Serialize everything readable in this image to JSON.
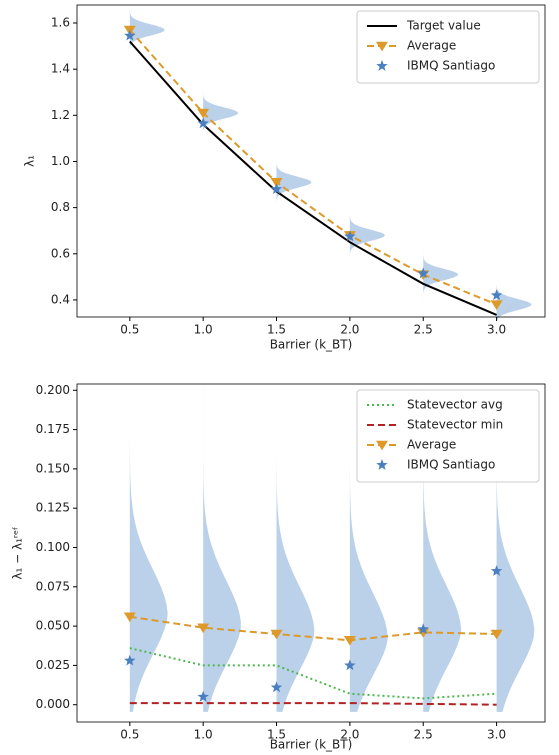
{
  "chart_data": [
    {
      "type": "line",
      "ylabel": "λ₁",
      "xlabel": "Barrier (k_BT)",
      "x": [
        0.5,
        1.0,
        1.5,
        2.0,
        2.5,
        3.0
      ],
      "xlim": [
        0.14,
        3.33
      ],
      "xticks": [
        0.5,
        {
          "value": 1.0,
          "label": "1.0"
        },
        1.5,
        {
          "value": 2.0,
          "label": "2.0"
        },
        2.5,
        {
          "value": 3.0,
          "label": "3.0"
        }
      ],
      "ylim": [
        0.326,
        1.678
      ],
      "yticks": [
        0.4,
        0.6,
        0.8,
        {
          "value": 1.0,
          "label": "1.0"
        },
        1.2,
        1.4,
        1.6
      ],
      "legend": "upper right",
      "series": [
        {
          "name": "Target value",
          "color": "#000000",
          "style": "solid",
          "marker": null,
          "values": [
            1.52,
            1.16,
            0.87,
            0.65,
            0.47,
            0.335
          ]
        },
        {
          "name": "Average",
          "color": "#dd9a2a",
          "style": "dashed",
          "marker": "triangle-down",
          "values": [
            1.57,
            1.21,
            0.91,
            0.68,
            0.51,
            0.38
          ]
        },
        {
          "name": "IBMQ Santiago",
          "color": "#4a7fc1",
          "style": "none",
          "marker": "star",
          "values": [
            1.545,
            1.165,
            0.88,
            0.675,
            0.515,
            0.42
          ]
        }
      ]
    },
    {
      "type": "line",
      "ylabel": "λ₁ − λ₁ʳᵉᶠ",
      "xlabel": "Barrier (k_BT)",
      "x": [
        0.5,
        1.0,
        1.5,
        2.0,
        2.5,
        3.0
      ],
      "xlim": [
        0.14,
        3.33
      ],
      "xticks": [
        0.5,
        {
          "value": 1.0,
          "label": "1.0"
        },
        1.5,
        {
          "value": 2.0,
          "label": "2.0"
        },
        2.5,
        {
          "value": 3.0,
          "label": "3.0"
        }
      ],
      "ylim": [
        -0.011,
        0.204
      ],
      "yticks": [
        {
          "value": 0,
          "label": "0.000"
        },
        {
          "value": 0.025,
          "label": "0.025"
        },
        {
          "value": 0.05,
          "label": "0.050"
        },
        {
          "value": 0.075,
          "label": "0.075"
        },
        {
          "value": 0.1,
          "label": "0.100"
        },
        {
          "value": 0.125,
          "label": "0.125"
        },
        {
          "value": 0.15,
          "label": "0.150"
        },
        {
          "value": 0.175,
          "label": "0.175"
        },
        {
          "value": 0.2,
          "label": "0.200"
        }
      ],
      "legend": "upper right",
      "series": [
        {
          "name": "Statevector avg",
          "color": "#4cb84c",
          "style": "dotted",
          "marker": null,
          "values": [
            0.036,
            0.025,
            0.025,
            0.007,
            0.004,
            0.007
          ]
        },
        {
          "name": "Statevector min",
          "color": "#b22222",
          "style": "dashed",
          "marker": null,
          "values": [
            0.001,
            0.001,
            0.001,
            0.001,
            0.0005,
            0.0
          ]
        },
        {
          "name": "Average",
          "color": "#dd9a2a",
          "style": "dashed",
          "marker": "triangle-down",
          "values": [
            0.056,
            0.049,
            0.045,
            0.041,
            0.046,
            0.045
          ]
        },
        {
          "name": "IBMQ Santiago",
          "color": "#4a7fc1",
          "style": "none",
          "marker": "star",
          "values": [
            0.028,
            0.005,
            0.011,
            0.025,
            0.048,
            0.085
          ]
        }
      ]
    }
  ]
}
